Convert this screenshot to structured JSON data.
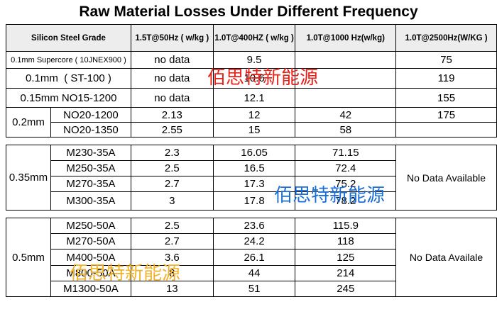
{
  "title": "Raw Material Losses Under Different Frequency",
  "headers": {
    "grade": "Silicon Steel Grade",
    "c1": "1.5T@50Hz ( w/kg )",
    "c2": "1.0T@400HZ ( w/kg )",
    "c3": "1.0T@1000 Hz(w/kg)",
    "c4": "1.0T@2500Hz(W/KG )"
  },
  "rows_single": [
    {
      "grade": "0.1mm Supercore ( 10JNEX900 )",
      "c1": "no data",
      "c2": "9.5",
      "c3": "",
      "c4": "75"
    },
    {
      "grade": "0.1mm  ( ST-100 )",
      "c1": "no data",
      "c2": "10.6",
      "c3": "",
      "c4": "119"
    },
    {
      "grade": "0.15mm NO15-1200",
      "c1": "no data",
      "c2": "12.1",
      "c3": "",
      "c4": "155"
    }
  ],
  "group_02": {
    "thickness": "0.2mm",
    "rows": [
      {
        "grade": "NO20-1200",
        "c1": "2.13",
        "c2": "12",
        "c3": "42",
        "c4": "175"
      },
      {
        "grade": "NO20-1350",
        "c1": "2.55",
        "c2": "15",
        "c3": "58",
        "c4": ""
      }
    ]
  },
  "group_035": {
    "thickness": "0.35mm",
    "c4": "No Data Available",
    "rows": [
      {
        "grade": "M230-35A",
        "c1": "2.3",
        "c2": "16.05",
        "c3": "71.15"
      },
      {
        "grade": "M250-35A",
        "c1": "2.5",
        "c2": "16.5",
        "c3": "72.4"
      },
      {
        "grade": "M270-35A",
        "c1": "2.7",
        "c2": "17.3",
        "c3": "75.2"
      },
      {
        "grade": "M300-35A",
        "c1": "3",
        "c2": "17.8",
        "c3": "78.2"
      }
    ]
  },
  "group_05": {
    "thickness": "0.5mm",
    "c4": "No Data Availale",
    "rows": [
      {
        "grade": "M250-50A",
        "c1": "2.5",
        "c2": "23.6",
        "c3": "115.9"
      },
      {
        "grade": "M270-50A",
        "c1": "2.7",
        "c2": "24.2",
        "c3": "118"
      },
      {
        "grade": "M400-50A",
        "c1": "3.6",
        "c2": "26.1",
        "c3": "125"
      },
      {
        "grade": "M800-50A",
        "c1": "8",
        "c2": "44",
        "c3": "214"
      },
      {
        "grade": "M1300-50A",
        "c1": "13",
        "c2": "51",
        "c3": "245"
      }
    ]
  },
  "watermark": "佰思特新能源",
  "colors": {
    "wm_red": "#e5231b",
    "wm_blue": "#1a6fd6",
    "wm_orange": "#f2b22a",
    "header_bg": "#ededed"
  }
}
